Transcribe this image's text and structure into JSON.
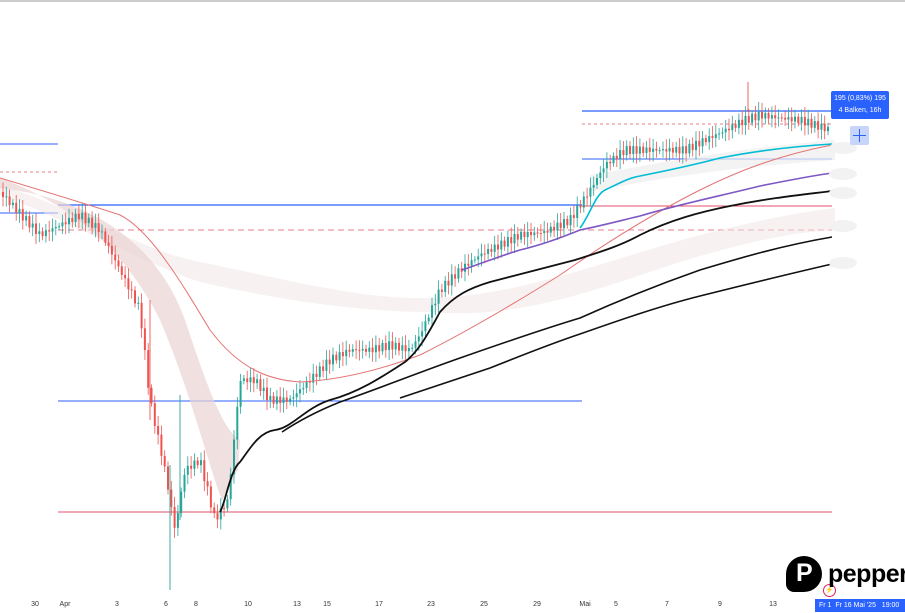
{
  "chart_data": {
    "type": "candlestick",
    "instrument_price_unit": "",
    "x_labels": [
      "30",
      "Apr",
      "3",
      "6",
      "8",
      "10",
      "13",
      "15",
      "17",
      "23",
      "25",
      "29",
      "Mai",
      "5",
      "7",
      "9",
      "13"
    ],
    "y_range_est": [
      150,
      200
    ],
    "price_path_est": [
      {
        "label": "30",
        "close": 181
      },
      {
        "label": "Apr",
        "close": 178
      },
      {
        "label": "3",
        "close": 174
      },
      {
        "label": "6",
        "close": 158
      },
      {
        "label": "8",
        "close": 160
      },
      {
        "label": "10",
        "close": 170
      },
      {
        "label": "13",
        "close": 168
      },
      {
        "label": "15",
        "close": 172
      },
      {
        "label": "17",
        "close": 173
      },
      {
        "label": "23",
        "close": 180
      },
      {
        "label": "25",
        "close": 182
      },
      {
        "label": "29",
        "close": 184
      },
      {
        "label": "Mai",
        "close": 188
      },
      {
        "label": "5",
        "close": 189
      },
      {
        "label": "7",
        "close": 190
      },
      {
        "label": "9",
        "close": 195
      },
      {
        "label": "13",
        "close": 195
      }
    ],
    "colors": {
      "bull": "#26a69a",
      "bear": "#ef5350",
      "support_line": "#2962ff",
      "level_line": "#e0516a",
      "moving_average": "#e57373",
      "cyan_line": "#00bcd4",
      "purple_line": "#7e57c2",
      "black_line": "#111111"
    }
  },
  "tooltip": {
    "line1": "195 (0,83%) 195",
    "line2": "4 Balken, 16h"
  },
  "time_badge": "Fr 1  Fr 16 Mai '25   19:00",
  "logo_text": "pepper"
}
